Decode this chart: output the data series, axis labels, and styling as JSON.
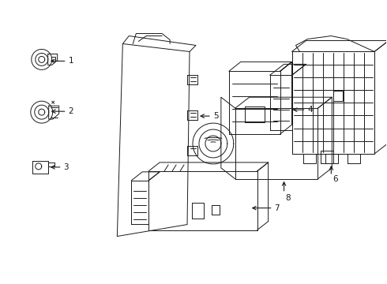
{
  "background_color": "#ffffff",
  "line_color": "#1a1a1a",
  "line_width": 0.7,
  "fig_width": 4.9,
  "fig_height": 3.6,
  "dpi": 100
}
